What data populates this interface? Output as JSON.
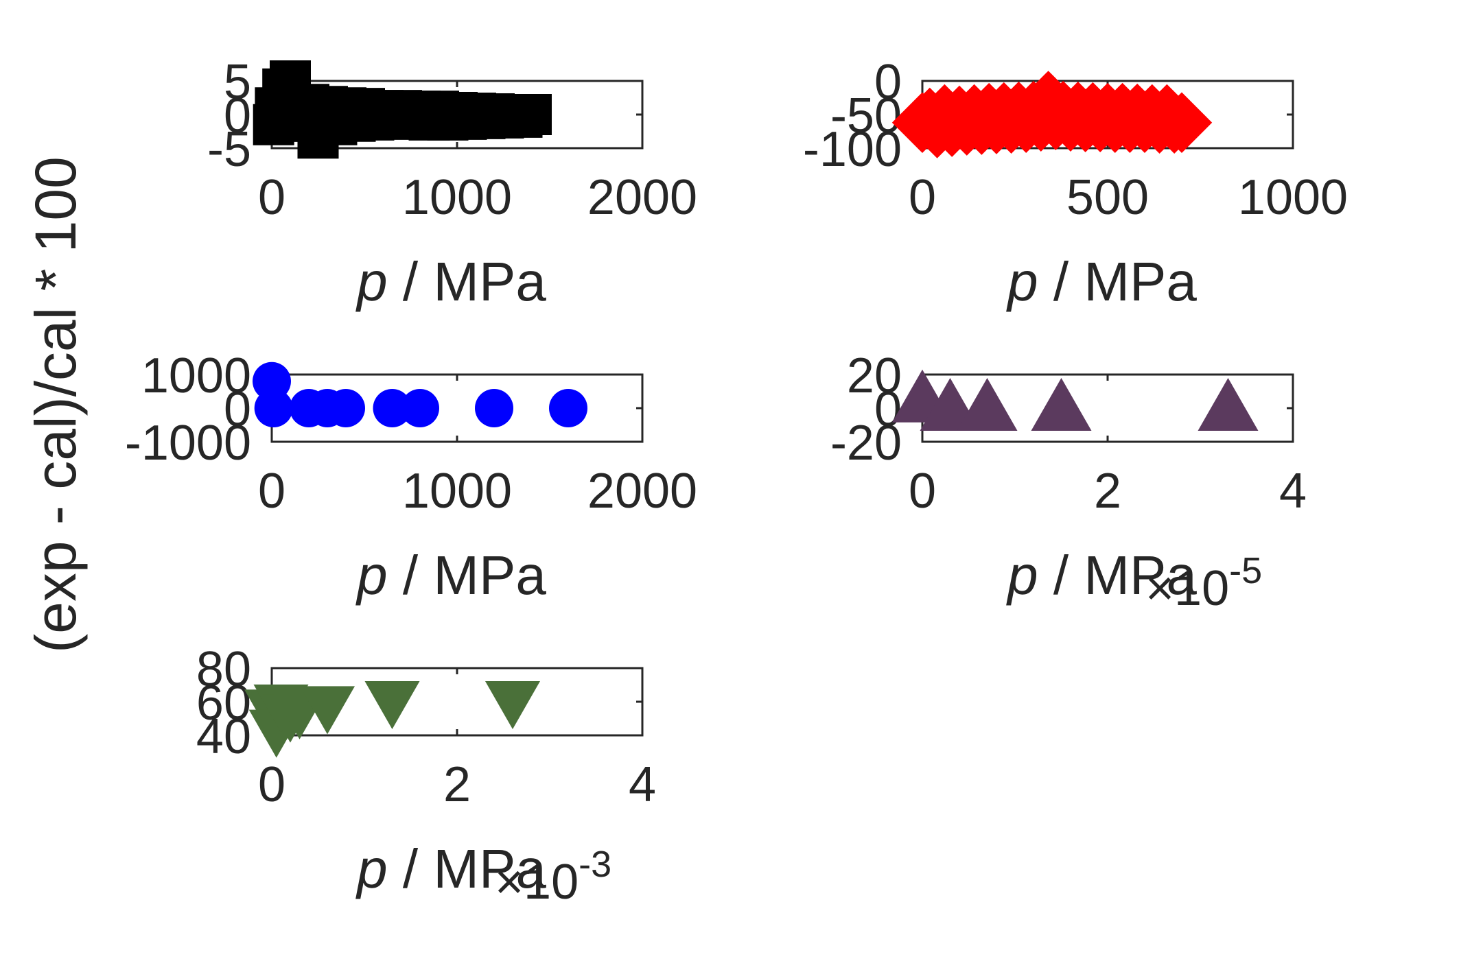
{
  "figure": {
    "ylabel": "(exp - cal)/cal * 100",
    "colors": {
      "axis": "#262626",
      "background": "#ffffff"
    }
  },
  "chart_data": [
    {
      "type": "scatter",
      "marker": "square",
      "color": "#000000",
      "xlabel_var": "p",
      "xlabel_unit": " / MPa",
      "xlim": [
        0,
        2000
      ],
      "ylim": [
        -5,
        5
      ],
      "xticks": [
        "0",
        "1000",
        "2000"
      ],
      "yticks": [
        "5",
        "0",
        "-5"
      ],
      "exponent": null,
      "series": [
        {
          "x": [
            10,
            20,
            40,
            60,
            80,
            100,
            150,
            200,
            250,
            300,
            350,
            400,
            450,
            500,
            550,
            600,
            650,
            700,
            750,
            800,
            850,
            900,
            950,
            1000,
            1050,
            1100,
            1150,
            1200,
            1250,
            1300,
            1350,
            1400
          ],
          "y": [
            -1.5,
            1.0,
            -1.0,
            3.8,
            0.5,
            5.0,
            -1.0,
            1.5,
            -3.5,
            1.2,
            -1.5,
            1.0,
            -1.0,
            0.9,
            -0.8,
            0.6,
            -0.6,
            0.6,
            -0.7,
            0.5,
            -0.8,
            0.5,
            -0.8,
            0.3,
            -0.7,
            0.2,
            -0.6,
            0.1,
            -0.5,
            0.0,
            -0.4,
            0.0
          ]
        }
      ]
    },
    {
      "type": "scatter",
      "marker": "diamond",
      "color": "#ff0000",
      "xlabel_var": "p",
      "xlabel_unit": " / MPa",
      "xlim": [
        0,
        1000
      ],
      "ylim": [
        -100,
        0
      ],
      "xticks": [
        "0",
        "500",
        "1000"
      ],
      "yticks": [
        "0",
        "-50",
        "-100"
      ],
      "exponent": null,
      "series": [
        {
          "x": [
            0,
            20,
            40,
            60,
            80,
            100,
            120,
            140,
            160,
            180,
            200,
            220,
            240,
            260,
            280,
            300,
            320,
            340,
            360,
            380,
            400,
            420,
            440,
            460,
            480,
            500,
            520,
            540,
            560,
            580,
            600,
            620,
            640,
            660,
            680,
            700
          ],
          "y": [
            -62,
            -55,
            -70,
            -50,
            -68,
            -52,
            -66,
            -50,
            -65,
            -48,
            -64,
            -47,
            -63,
            -46,
            -62,
            -45,
            -60,
            -30,
            -58,
            -45,
            -60,
            -46,
            -61,
            -47,
            -61,
            -48,
            -62,
            -48,
            -62,
            -49,
            -62,
            -50,
            -63,
            -50,
            -63,
            -62
          ]
        }
      ]
    },
    {
      "type": "scatter",
      "marker": "circle",
      "color": "#0000ff",
      "xlabel_var": "p",
      "xlabel_unit": " / MPa",
      "xlim": [
        0,
        2000
      ],
      "ylim": [
        -1000,
        1000
      ],
      "xticks": [
        "0",
        "1000",
        "2000"
      ],
      "yticks": [
        "1000",
        "0",
        "-1000"
      ],
      "exponent": null,
      "series": [
        {
          "x": [
            0,
            10,
            200,
            300,
            400,
            650,
            800,
            1200,
            1600
          ],
          "y": [
            800,
            0,
            0,
            0,
            0,
            0,
            0,
            0,
            0
          ]
        }
      ]
    },
    {
      "type": "scatter",
      "marker": "triangle-up",
      "color": "#5b3a5e",
      "xlabel_var": "p",
      "xlabel_unit": " / MPa",
      "xlim": [
        0,
        4e-05
      ],
      "ylim": [
        -20,
        20
      ],
      "xticks": [
        "0",
        "2",
        "4"
      ],
      "yticks": [
        "20",
        "0",
        "-20"
      ],
      "exponent": "-5",
      "series": [
        {
          "x": [
            0.0,
            3e-06,
            7e-06,
            1.5e-05,
            3.3e-05
          ],
          "y": [
            5,
            0,
            0,
            0,
            0
          ]
        }
      ]
    },
    {
      "type": "scatter",
      "marker": "triangle-down",
      "color": "#4a7039",
      "xlabel_var": "p",
      "xlabel_unit": " / MPa",
      "xlim": [
        0,
        0.004
      ],
      "ylim": [
        40,
        80
      ],
      "xticks": [
        "0",
        "2",
        "4"
      ],
      "yticks": [
        "80",
        "60",
        "40"
      ],
      "exponent": "-3",
      "series": [
        {
          "x": [
            0.0,
            5e-05,
            0.0001,
            0.0002,
            0.0003,
            0.0006,
            0.0013,
            0.0026
          ],
          "y": [
            55,
            43,
            58,
            52,
            54,
            57,
            60,
            60
          ]
        }
      ]
    }
  ]
}
